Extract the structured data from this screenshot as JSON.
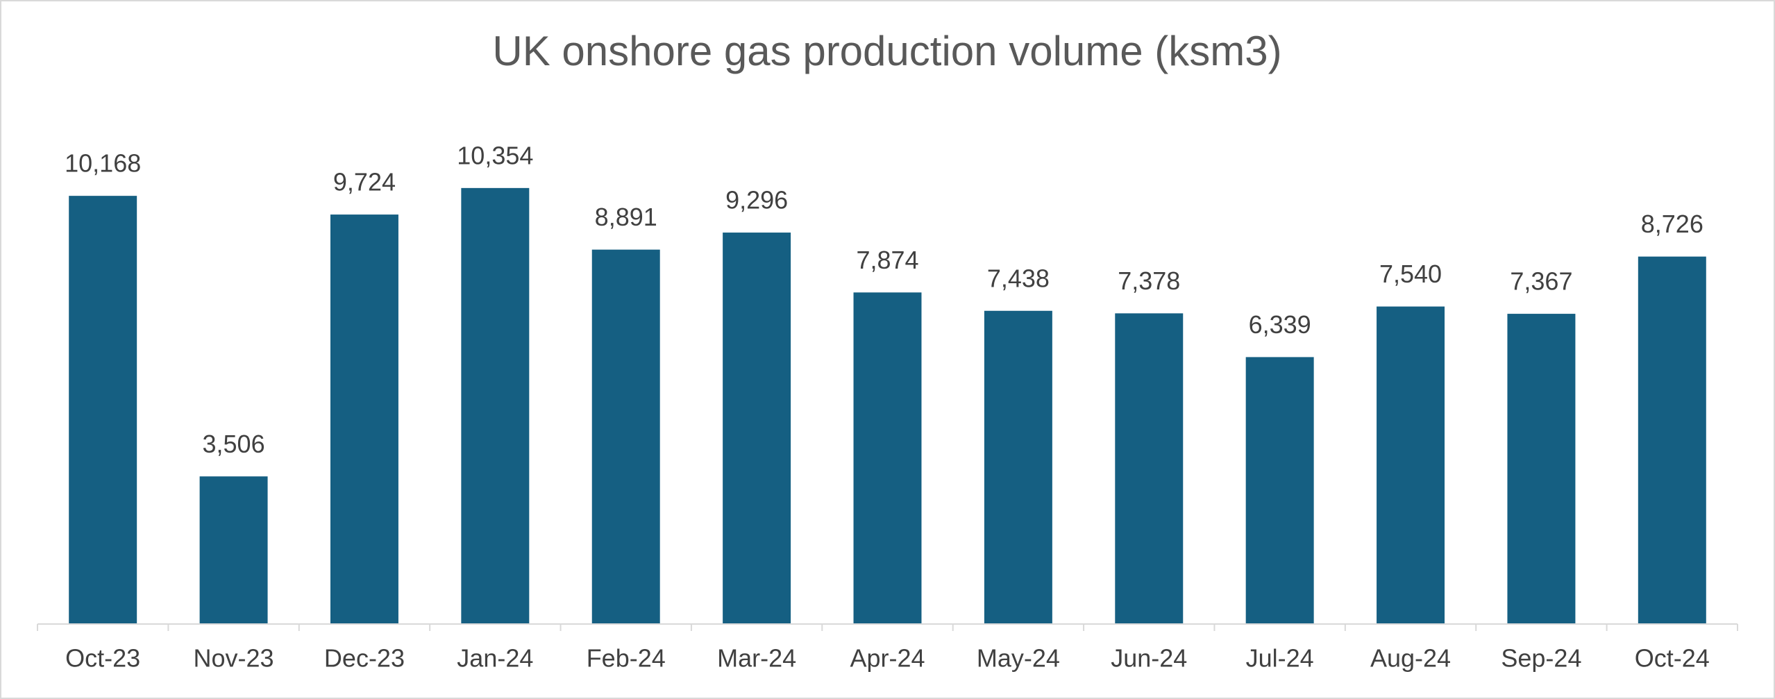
{
  "chart_data": {
    "type": "bar",
    "title": "UK onshore gas production volume (ksm3)",
    "categories": [
      "Oct-23",
      "Nov-23",
      "Dec-23",
      "Jan-24",
      "Feb-24",
      "Mar-24",
      "Apr-24",
      "May-24",
      "Jun-24",
      "Jul-24",
      "Aug-24",
      "Sep-24",
      "Oct-24"
    ],
    "values": [
      10168,
      3506,
      9724,
      10354,
      8891,
      9296,
      7874,
      7438,
      7378,
      6339,
      7540,
      7367,
      8726
    ],
    "value_labels": [
      "10,168",
      "3,506",
      "9,724",
      "10,354",
      "8,891",
      "9,296",
      "7,874",
      "7,438",
      "7,378",
      "6,339",
      "7,540",
      "7,367",
      "8,726"
    ],
    "color": "#155f82",
    "ylim": [
      0,
      12000
    ]
  }
}
